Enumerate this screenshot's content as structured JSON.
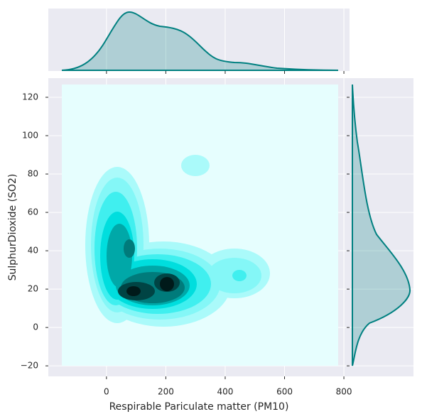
{
  "chart_data": {
    "type": "kde",
    "xlabel": "Respirable Pariculate matter (PM10)",
    "ylabel": "SulphurDioxide (SO2)",
    "xlim": [
      -196,
      819
    ],
    "ylim": [
      -25.5,
      130
    ],
    "xticks": [
      0,
      200,
      400,
      600,
      800
    ],
    "yticks": [
      {
        "value": -20,
        "label": "−20"
      },
      0,
      20,
      40,
      60,
      80,
      100,
      120
    ],
    "color": "#008080",
    "grid": true
  }
}
